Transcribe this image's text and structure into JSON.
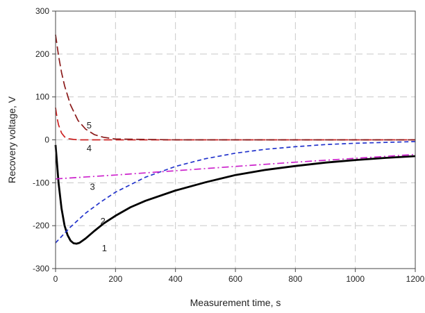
{
  "chart_data": {
    "type": "line",
    "xlabel": "Measurement time, s",
    "ylabel": "Recovery voltage, V",
    "xlim": [
      0,
      1200
    ],
    "ylim": [
      -300,
      300
    ],
    "x_ticks": [
      0,
      200,
      400,
      600,
      800,
      1000,
      1200
    ],
    "y_ticks": [
      -300,
      -200,
      -100,
      0,
      100,
      200,
      300
    ],
    "grid": true,
    "series": [
      {
        "label": "1",
        "color": "#000000",
        "dash": "solid",
        "x": [
          0,
          10,
          20,
          30,
          40,
          50,
          60,
          70,
          80,
          100,
          130,
          160,
          200,
          250,
          300,
          400,
          500,
          600,
          700,
          800,
          900,
          1000,
          1100,
          1200
        ],
        "y": [
          -12,
          -100,
          -160,
          -200,
          -222,
          -235,
          -241,
          -242,
          -240,
          -230,
          -212,
          -195,
          -177,
          -157,
          -142,
          -118,
          -99,
          -82,
          -70,
          -61,
          -53,
          -47,
          -42,
          -38
        ]
      },
      {
        "label": "2",
        "color": "#2233cc",
        "dash": "short-dash",
        "x": [
          0,
          50,
          100,
          150,
          200,
          300,
          400,
          500,
          600,
          700,
          800,
          900,
          1000,
          1100,
          1200
        ],
        "y": [
          -240,
          -203,
          -171,
          -145,
          -122,
          -87,
          -62,
          -44,
          -31,
          -22,
          -16,
          -11,
          -8,
          -6,
          -4
        ]
      },
      {
        "label": "3",
        "color": "#cc22cc",
        "dash": "dash-dot",
        "x": [
          0,
          200,
          400,
          600,
          800,
          1000,
          1200
        ],
        "y": [
          -91,
          -82,
          -72,
          -62,
          -52,
          -43,
          -34
        ]
      },
      {
        "label": "4",
        "color": "#cc2222",
        "dash": "long-dash",
        "x": [
          0,
          5,
          10,
          20,
          30,
          40,
          60,
          80,
          120,
          200,
          400,
          800,
          1200
        ],
        "y": [
          75,
          51,
          35,
          16,
          7,
          3,
          1,
          0,
          0,
          0,
          0,
          0,
          0
        ]
      },
      {
        "label": "5",
        "color": "#8b1a1a",
        "dash": "long-dash",
        "x": [
          0,
          10,
          20,
          30,
          50,
          75,
          100,
          130,
          160,
          200,
          400,
          800,
          1200
        ],
        "y": [
          245,
          196,
          157,
          126,
          81,
          45,
          25,
          12,
          6,
          2,
          0,
          0,
          0
        ]
      }
    ],
    "annotations": [
      {
        "text": "1",
        "x": 163,
        "y": -253
      },
      {
        "text": "2",
        "x": 158,
        "y": -190
      },
      {
        "text": "3",
        "x": 123,
        "y": -110
      },
      {
        "text": "4",
        "x": 112,
        "y": -20
      },
      {
        "text": "5",
        "x": 112,
        "y": 33
      }
    ]
  }
}
